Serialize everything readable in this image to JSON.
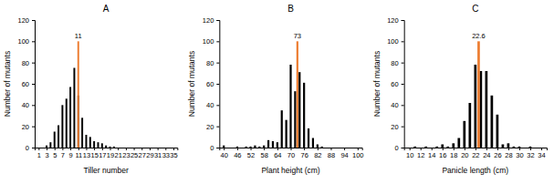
{
  "chart_data": [
    {
      "type": "bar",
      "title": "A",
      "x_label": "Tiller number",
      "y_label": "Number of mutants",
      "color": "#000000",
      "x": [
        1,
        2,
        3,
        4,
        5,
        6,
        7,
        8,
        9,
        10,
        11,
        12,
        13,
        14,
        15,
        16,
        17,
        18,
        19,
        20,
        21,
        22,
        23,
        24,
        25,
        26,
        27,
        28,
        29,
        30,
        31,
        32,
        33,
        34,
        35
      ],
      "values": [
        0,
        0,
        2,
        5,
        15,
        21,
        40,
        46,
        57,
        75,
        49,
        28,
        12,
        10,
        6,
        5,
        4,
        2,
        1,
        1,
        0,
        0,
        0,
        0,
        0,
        0,
        0,
        0,
        0,
        0,
        0,
        0,
        0,
        0,
        0
      ],
      "xlim": [
        0,
        36
      ],
      "xticks": [
        1,
        3,
        5,
        7,
        9,
        11,
        13,
        15,
        17,
        19,
        21,
        23,
        25,
        27,
        29,
        31,
        33,
        35
      ],
      "ylim": [
        0,
        120
      ],
      "yticks": [
        0,
        20,
        40,
        60,
        80,
        100,
        120
      ],
      "annotations": [
        {
          "x": 11,
          "y": 100,
          "text": "11",
          "color": "#ED7D31"
        }
      ]
    },
    {
      "type": "bar",
      "title": "B",
      "x_label": "Plant height (cm)",
      "y_label": "Number of mutants",
      "color": "#000000",
      "x": [
        40,
        42,
        44,
        46,
        48,
        50,
        52,
        54,
        56,
        58,
        60,
        62,
        64,
        66,
        68,
        70,
        72,
        74,
        76,
        78,
        80,
        82,
        84,
        86,
        88,
        90,
        92,
        94,
        96,
        98,
        100
      ],
      "values": [
        2,
        0,
        0,
        1,
        0,
        1,
        1,
        2,
        1,
        2,
        7,
        6,
        5,
        35,
        26,
        78,
        53,
        71,
        61,
        18,
        9,
        3,
        1,
        0,
        0,
        0,
        0,
        0,
        0,
        0,
        0
      ],
      "xlim": [
        38,
        102
      ],
      "xticks": [
        40,
        46,
        52,
        58,
        64,
        70,
        76,
        82,
        88,
        94,
        100
      ],
      "ylim": [
        0,
        120
      ],
      "yticks": [
        0,
        20,
        40,
        60,
        80,
        100,
        120
      ],
      "annotations": [
        {
          "x": 73,
          "y": 100,
          "text": "73",
          "color": "#ED7D31"
        }
      ]
    },
    {
      "type": "bar",
      "title": "C",
      "x_label": "Panicle length (cm)",
      "y_label": "Number of mutants",
      "color": "#000000",
      "x": [
        10,
        11,
        12,
        13,
        14,
        15,
        16,
        17,
        18,
        19,
        20,
        21,
        22,
        23,
        24,
        25,
        26,
        27,
        28,
        29,
        30,
        31,
        32,
        33,
        34
      ],
      "values": [
        0,
        1,
        0,
        1,
        0,
        1,
        3,
        1,
        4,
        9,
        25,
        42,
        78,
        72,
        72,
        49,
        31,
        3,
        4,
        1,
        1,
        0,
        1,
        0,
        0
      ],
      "xlim": [
        9,
        35
      ],
      "xticks": [
        10,
        12,
        14,
        16,
        18,
        20,
        22,
        24,
        26,
        28,
        30,
        32,
        34
      ],
      "ylim": [
        0,
        120
      ],
      "yticks": [
        0,
        20,
        40,
        60,
        80,
        100,
        120
      ],
      "annotations": [
        {
          "x": 22.6,
          "y": 100,
          "text": "22.6",
          "color": "#ED7D31"
        }
      ]
    }
  ]
}
